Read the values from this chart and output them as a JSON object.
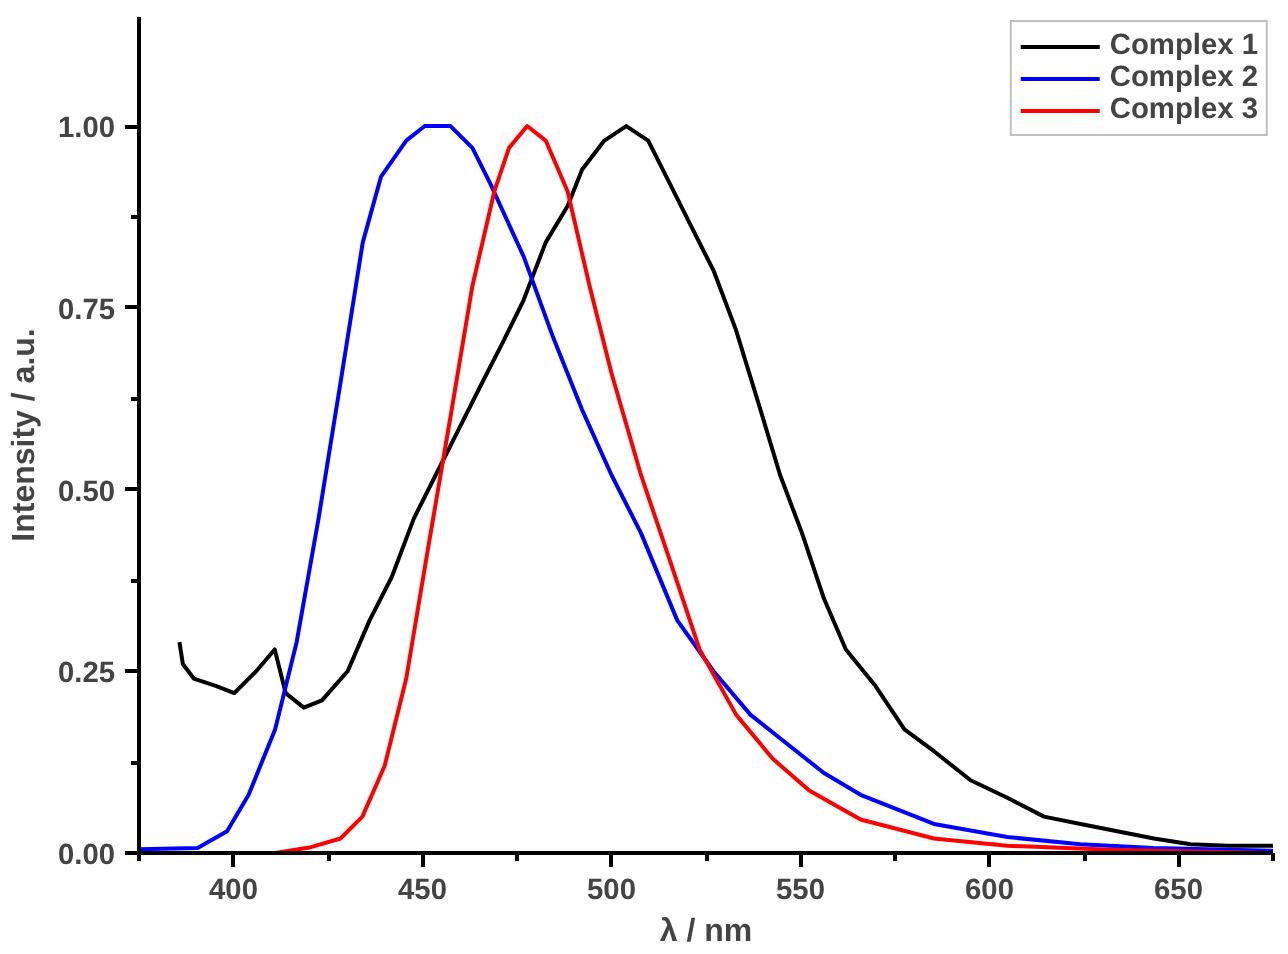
{
  "chart_data": {
    "type": "line",
    "xlabel": "λ / nm",
    "ylabel": "Intensity / a.u.",
    "xlim": [
      375,
      675
    ],
    "ylim": [
      0,
      1.15
    ],
    "xticks": [
      {
        "value": 375,
        "label": null
      },
      400,
      {
        "value": 425,
        "label": null
      },
      450,
      {
        "value": 475,
        "label": null
      },
      500,
      {
        "value": 525,
        "label": null
      },
      550,
      {
        "value": 575,
        "label": null
      },
      600,
      {
        "value": 625,
        "label": null
      },
      650,
      {
        "value": 675,
        "label": null
      }
    ],
    "yticks": [
      {
        "value": 0,
        "label": "0.00"
      },
      {
        "value": 0.125,
        "label": null
      },
      0.25,
      {
        "value": 0.375,
        "label": null
      },
      {
        "value": 0.5,
        "label": "0.50"
      },
      {
        "value": 0.625,
        "label": null
      },
      0.75,
      {
        "value": 0.875,
        "label": null
      },
      {
        "value": 1,
        "label": "1.00"
      }
    ],
    "grid": false,
    "legend": "top right",
    "marker": "none",
    "line_style": "solid",
    "series": [
      {
        "name": "Complex 1",
        "color": "#000000",
        "x": [
          385.7,
          386.6,
          389.5,
          395.3,
          400.2,
          406,
          410.9,
          413.8,
          418.6,
          423.4,
          430.2,
          436,
          441.9,
          447.7,
          453.5,
          459.3,
          465.1,
          471,
          476.7,
          482.6,
          488.4,
          492.2,
          498.1,
          503.9,
          509.7,
          515.5,
          521.3,
          527.1,
          532.9,
          538.8,
          544.6,
          550.4,
          556.2,
          562,
          569.8,
          577.5,
          585.3,
          595,
          604.7,
          614.4,
          624.1,
          633.8,
          643.5,
          653.2,
          663,
          675
        ],
        "values": [
          0.29,
          0.26,
          0.24,
          0.23,
          0.22,
          0.25,
          0.28,
          0.22,
          0.2,
          0.21,
          0.25,
          0.32,
          0.38,
          0.46,
          0.52,
          0.58,
          0.64,
          0.7,
          0.76,
          0.84,
          0.89,
          0.94,
          0.98,
          1.0,
          0.98,
          0.92,
          0.86,
          0.8,
          0.72,
          0.62,
          0.52,
          0.44,
          0.35,
          0.28,
          0.23,
          0.17,
          0.14,
          0.1,
          0.076,
          0.05,
          0.04,
          0.03,
          0.02,
          0.012,
          0.01,
          0.01
        ]
      },
      {
        "name": "Complex 2",
        "color": "#0000ff",
        "x": [
          375,
          390.5,
          398.3,
          404,
          411,
          416.7,
          422.5,
          428.4,
          434.2,
          439,
          445.7,
          450.6,
          457.4,
          463.2,
          468,
          476.8,
          484.5,
          492.2,
          500,
          507.8,
          517.4,
          527,
          536.8,
          546.5,
          556.2,
          565.9,
          585.3,
          604.7,
          624,
          643.4,
          675
        ],
        "values": [
          0.005,
          0.007,
          0.03,
          0.08,
          0.17,
          0.29,
          0.46,
          0.65,
          0.84,
          0.93,
          0.98,
          1.0,
          1.0,
          0.97,
          0.92,
          0.82,
          0.71,
          0.61,
          0.52,
          0.44,
          0.32,
          0.25,
          0.19,
          0.15,
          0.11,
          0.08,
          0.04,
          0.022,
          0.012,
          0.007,
          0.003
        ]
      },
      {
        "name": "Complex 3",
        "color": "#ff0000",
        "x": [
          375,
          411,
          420.5,
          428.3,
          434.1,
          440,
          445.7,
          451.5,
          457.4,
          463.2,
          469,
          472.9,
          477.7,
          482.6,
          488.4,
          494.2,
          500,
          507.8,
          515.6,
          523.3,
          533,
          542.6,
          552.3,
          565.9,
          585.3,
          604.7,
          633.7,
          675
        ],
        "values": [
          0,
          0,
          0.008,
          0.02,
          0.05,
          0.12,
          0.24,
          0.42,
          0.6,
          0.78,
          0.91,
          0.97,
          1.0,
          0.98,
          0.91,
          0.78,
          0.66,
          0.52,
          0.4,
          0.28,
          0.19,
          0.13,
          0.086,
          0.046,
          0.02,
          0.01,
          0.004,
          0
        ]
      }
    ]
  }
}
